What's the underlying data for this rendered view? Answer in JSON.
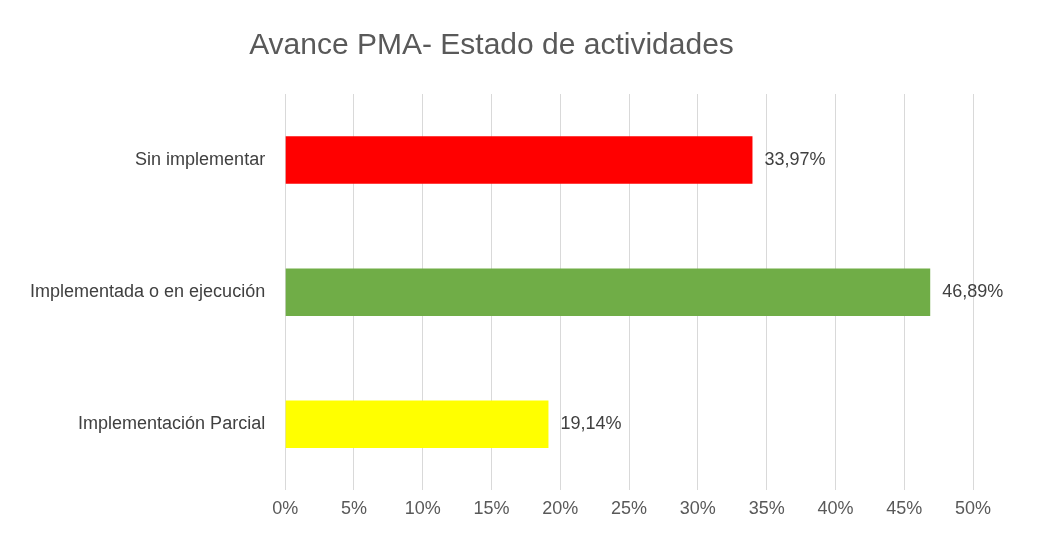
{
  "chart_data": {
    "type": "bar",
    "title": "Avance PMA- Estado de actividades",
    "orientation": "horizontal",
    "categories": [
      "Sin implementar",
      "Implementada o en ejecución",
      "Implementación Parcial"
    ],
    "values": [
      33.97,
      46.89,
      19.14
    ],
    "colors": [
      "#ff0000",
      "#70ad47",
      "#ffff00"
    ],
    "value_labels": [
      "33,97%",
      "46,89%",
      "19,14%"
    ],
    "xlim": [
      0,
      50
    ],
    "xticks": [
      {
        "value": 0,
        "label": "0%"
      },
      {
        "value": 5,
        "label": "5%"
      },
      {
        "value": 10,
        "label": "10%"
      },
      {
        "value": 15,
        "label": "15%"
      },
      {
        "value": 20,
        "label": "20%"
      },
      {
        "value": 25,
        "label": "25%"
      },
      {
        "value": 30,
        "label": "30%"
      },
      {
        "value": 35,
        "label": "35%"
      },
      {
        "value": 40,
        "label": "40%"
      },
      {
        "value": 45,
        "label": "45%"
      },
      {
        "value": 50,
        "label": "50%"
      }
    ],
    "grid": "x"
  }
}
